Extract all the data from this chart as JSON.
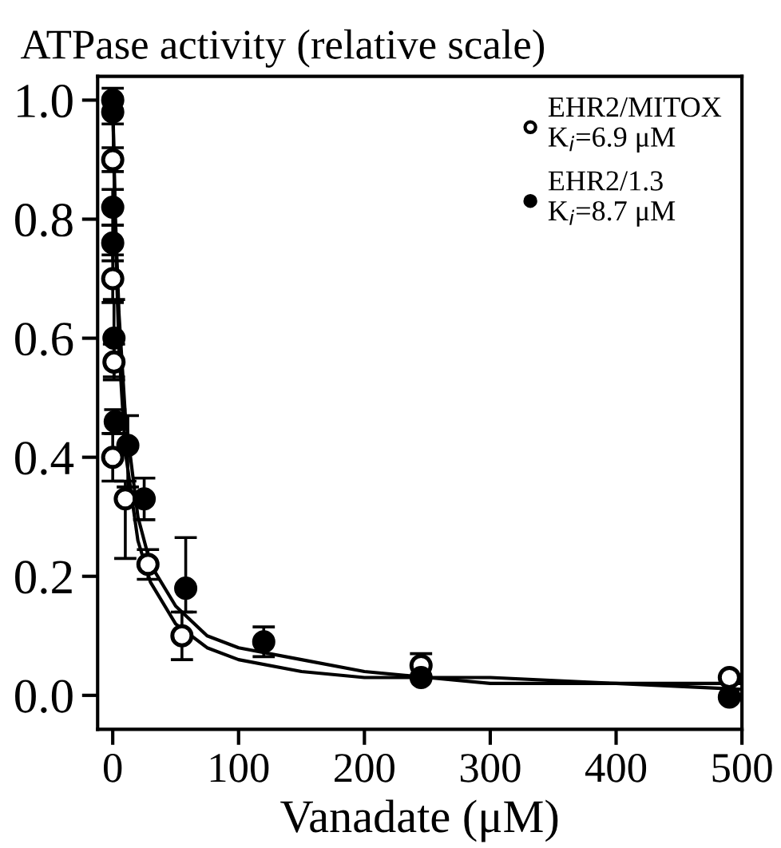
{
  "chart_data": {
    "type": "scatter",
    "title": "ATPase activity (relative scale)",
    "xlabel": "Vanadate (μM)",
    "xlim": [
      -12,
      500
    ],
    "xticks": [
      0,
      100,
      200,
      300,
      400,
      500
    ],
    "ylim": [
      -0.057,
      1.04
    ],
    "yticks": [
      {
        "value": 0,
        "label": "0.0"
      },
      0.2,
      0.4,
      0.6,
      0.8,
      {
        "value": 1,
        "label": "1.0"
      }
    ],
    "grid": false,
    "legend": "top right",
    "series": [
      {
        "name": "EHR2/MITOX\nK$_{i}$=6.9 μM",
        "color": "#ffffff",
        "marker": "circle",
        "x": [
          0,
          0,
          1,
          0,
          10,
          28,
          55,
          245,
          490
        ],
        "values": [
          0.9,
          0.7,
          0.56,
          0.4,
          0.33,
          0.22,
          0.1,
          0.05,
          0.03
        ],
        "errors": [
          0.02,
          0.04,
          0.03,
          0.04,
          [
            0.23,
            0.36
          ],
          0.025,
          0.04,
          0.02,
          null
        ]
      },
      {
        "name": "EHR2/1.3\nK$_{i}$=8.7 μM",
        "color": "#000000",
        "marker": "circle",
        "x": [
          0,
          0,
          0,
          0,
          1,
          2,
          12,
          25,
          58,
          120,
          245,
          490
        ],
        "values": [
          1.0,
          0.98,
          0.82,
          0.76,
          0.6,
          0.46,
          0.42,
          0.33,
          0.18,
          0.09,
          0.03,
          -0.003
        ],
        "errors": [
          0.02,
          0.02,
          0.03,
          0.03,
          0.065,
          0.02,
          [
            0.35,
            0.47
          ],
          0.035,
          [
            0.14,
            0.265
          ],
          0.025,
          null,
          null
        ]
      },
      {
        "type": "line",
        "color": "#000000",
        "x": [
          0,
          2,
          5,
          10,
          20,
          30,
          50,
          75,
          100,
          150,
          200,
          250,
          300,
          400,
          500
        ],
        "values": [
          1.0,
          0.78,
          0.58,
          0.41,
          0.26,
          0.19,
          0.12,
          0.08,
          0.06,
          0.04,
          0.03,
          0.03,
          0.02,
          0.02,
          0.01
        ]
      },
      {
        "type": "line",
        "color": "#000000",
        "x": [
          0,
          2,
          5,
          10,
          20,
          30,
          50,
          75,
          100,
          150,
          200,
          250,
          300,
          400,
          500
        ],
        "values": [
          1.0,
          0.81,
          0.64,
          0.47,
          0.3,
          0.22,
          0.15,
          0.1,
          0.08,
          0.06,
          0.04,
          0.03,
          0.03,
          0.02,
          0.02
        ]
      }
    ]
  }
}
